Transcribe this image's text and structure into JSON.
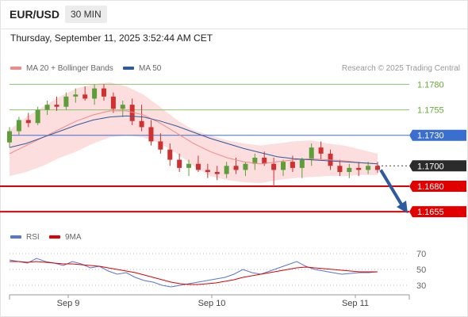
{
  "header": {
    "symbol": "EUR/USD",
    "timeframe": "30 MIN",
    "timestamp": "Thursday, September 11, 2025 3:52:44 AM CET"
  },
  "legend": {
    "ma20_label": "MA 20 + Bollinger Bands",
    "ma20_color": "#f08a8a",
    "ma50_label": "MA 50",
    "ma50_color": "#2e5a9e",
    "credit": "Research © 2025 Trading Central"
  },
  "rsi_legend": {
    "rsi_label": "RSI",
    "rsi_color": "#5577cc",
    "ma_label": "9MA",
    "ma_color": "#e00000"
  },
  "chart_data": [
    {
      "type": "candlestick",
      "instrument": "EUR/USD",
      "interval": "30 MIN",
      "x_ticks": [
        "Sep 9",
        "Sep 10",
        "Sep 11"
      ],
      "ylim": [
        1.1645,
        1.1785
      ],
      "levels": [
        {
          "value": 1.178,
          "label": "1.1780",
          "style": "resistance-minor",
          "color": "#8cc36b"
        },
        {
          "value": 1.1755,
          "label": "1.1755",
          "style": "resistance-minor",
          "color": "#8cc36b"
        },
        {
          "value": 1.173,
          "label": "1.1730",
          "style": "resistance",
          "color": "#3b6fcf"
        },
        {
          "value": 1.17,
          "label": "1.1700",
          "style": "current-price",
          "color": "#333333"
        },
        {
          "value": 1.168,
          "label": "1.1680",
          "style": "support",
          "color": "#e00000"
        },
        {
          "value": 1.1655,
          "label": "1.1655",
          "style": "support",
          "color": "#e00000"
        }
      ],
      "series": [
        {
          "name": "MA 20 + Bollinger Bands",
          "ma20": [
            1.1712,
            1.172,
            1.1728,
            1.1736,
            1.1744,
            1.175,
            1.1754,
            1.1754,
            1.175,
            1.1742,
            1.1732,
            1.1722,
            1.1714,
            1.1708,
            1.1704,
            1.1702,
            1.1704,
            1.1706,
            1.1707,
            1.1706,
            1.1705,
            1.1703,
            1.1702
          ],
          "upper": [
            1.1735,
            1.1748,
            1.1758,
            1.1768,
            1.1776,
            1.178,
            1.1782,
            1.1778,
            1.177,
            1.1758,
            1.1745,
            1.1735,
            1.173,
            1.1725,
            1.1722,
            1.172,
            1.1722,
            1.1724,
            1.1725,
            1.1722,
            1.172,
            1.1716,
            1.1712
          ],
          "lower": [
            1.169,
            1.1694,
            1.17,
            1.1708,
            1.1714,
            1.1722,
            1.1728,
            1.173,
            1.1728,
            1.1722,
            1.1712,
            1.17,
            1.169,
            1.1686,
            1.1684,
            1.1683,
            1.1686,
            1.1688,
            1.1689,
            1.169,
            1.169,
            1.1691,
            1.1691
          ]
        },
        {
          "name": "MA 50",
          "values": [
            1.1718,
            1.1722,
            1.1728,
            1.1734,
            1.174,
            1.1745,
            1.1748,
            1.1749,
            1.1748,
            1.1744,
            1.1739,
            1.1733,
            1.1727,
            1.1722,
            1.1717,
            1.1713,
            1.1709,
            1.1707,
            1.1706,
            1.1705,
            1.1704,
            1.1703,
            1.1702
          ]
        }
      ],
      "candles": [
        [
          1.1723,
          1.1738,
          1.1718,
          1.1734
        ],
        [
          1.1734,
          1.1748,
          1.173,
          1.1745
        ],
        [
          1.1745,
          1.1752,
          1.1738,
          1.1742
        ],
        [
          1.1742,
          1.1758,
          1.174,
          1.1755
        ],
        [
          1.1755,
          1.1764,
          1.175,
          1.176
        ],
        [
          1.176,
          1.1768,
          1.1754,
          1.1758
        ],
        [
          1.1758,
          1.1772,
          1.1755,
          1.1768
        ],
        [
          1.1768,
          1.1776,
          1.1762,
          1.177
        ],
        [
          1.177,
          1.1778,
          1.1764,
          1.1766
        ],
        [
          1.1766,
          1.178,
          1.176,
          1.1776
        ],
        [
          1.1776,
          1.178,
          1.1764,
          1.1768
        ],
        [
          1.1768,
          1.1772,
          1.1752,
          1.1756
        ],
        [
          1.1756,
          1.1764,
          1.1748,
          1.176
        ],
        [
          1.176,
          1.1766,
          1.174,
          1.1744
        ],
        [
          1.1744,
          1.176,
          1.1734,
          1.1738
        ],
        [
          1.1738,
          1.1745,
          1.172,
          1.1724
        ],
        [
          1.1724,
          1.1732,
          1.1712,
          1.1716
        ],
        [
          1.1716,
          1.1722,
          1.17,
          1.1706
        ],
        [
          1.1706,
          1.1712,
          1.1694,
          1.1698
        ],
        [
          1.1698,
          1.1706,
          1.169,
          1.1702
        ],
        [
          1.1702,
          1.171,
          1.1694,
          1.1696
        ],
        [
          1.1696,
          1.1702,
          1.1688,
          1.1694
        ],
        [
          1.1694,
          1.17,
          1.1686,
          1.1692
        ],
        [
          1.1692,
          1.1704,
          1.1688,
          1.17
        ],
        [
          1.17,
          1.1708,
          1.1692,
          1.1696
        ],
        [
          1.1696,
          1.1704,
          1.169,
          1.1702
        ],
        [
          1.1702,
          1.1712,
          1.1696,
          1.1708
        ],
        [
          1.1708,
          1.1714,
          1.17,
          1.1702
        ],
        [
          1.1702,
          1.1708,
          1.168,
          1.1696
        ],
        [
          1.1696,
          1.1706,
          1.169,
          1.1704
        ],
        [
          1.1704,
          1.171,
          1.1694,
          1.1698
        ],
        [
          1.1698,
          1.1708,
          1.1688,
          1.1706
        ],
        [
          1.1706,
          1.1722,
          1.17,
          1.1718
        ],
        [
          1.1718,
          1.1724,
          1.1706,
          1.1712
        ],
        [
          1.1712,
          1.1716,
          1.1696,
          1.17
        ],
        [
          1.17,
          1.1706,
          1.169,
          1.1694
        ],
        [
          1.1694,
          1.1702,
          1.1688,
          1.1698
        ],
        [
          1.1698,
          1.1704,
          1.169,
          1.1696
        ],
        [
          1.1696,
          1.1704,
          1.1692,
          1.17
        ],
        [
          1.17,
          1.1704,
          1.1693,
          1.1696
        ]
      ]
    },
    {
      "type": "line",
      "name": "RSI panel",
      "y_ticks": [
        70,
        50,
        30
      ],
      "ylim": [
        20,
        80
      ],
      "series": [
        {
          "name": "RSI",
          "values": [
            62,
            60,
            58,
            64,
            60,
            58,
            55,
            60,
            57,
            52,
            54,
            48,
            44,
            46,
            40,
            36,
            34,
            30,
            28,
            30,
            32,
            34,
            36,
            38,
            40,
            44,
            50,
            46,
            44,
            48,
            52,
            56,
            60,
            54,
            50,
            48,
            46,
            44,
            45,
            46,
            46,
            47
          ]
        },
        {
          "name": "9MA",
          "values": [
            60,
            60,
            59,
            60,
            59,
            58,
            57,
            57,
            56,
            55,
            54,
            52,
            50,
            48,
            46,
            43,
            40,
            37,
            34,
            32,
            31,
            31,
            32,
            33,
            35,
            37,
            40,
            42,
            44,
            46,
            48,
            50,
            52,
            53,
            52,
            51,
            50,
            49,
            48,
            47,
            47,
            47
          ]
        }
      ]
    }
  ]
}
